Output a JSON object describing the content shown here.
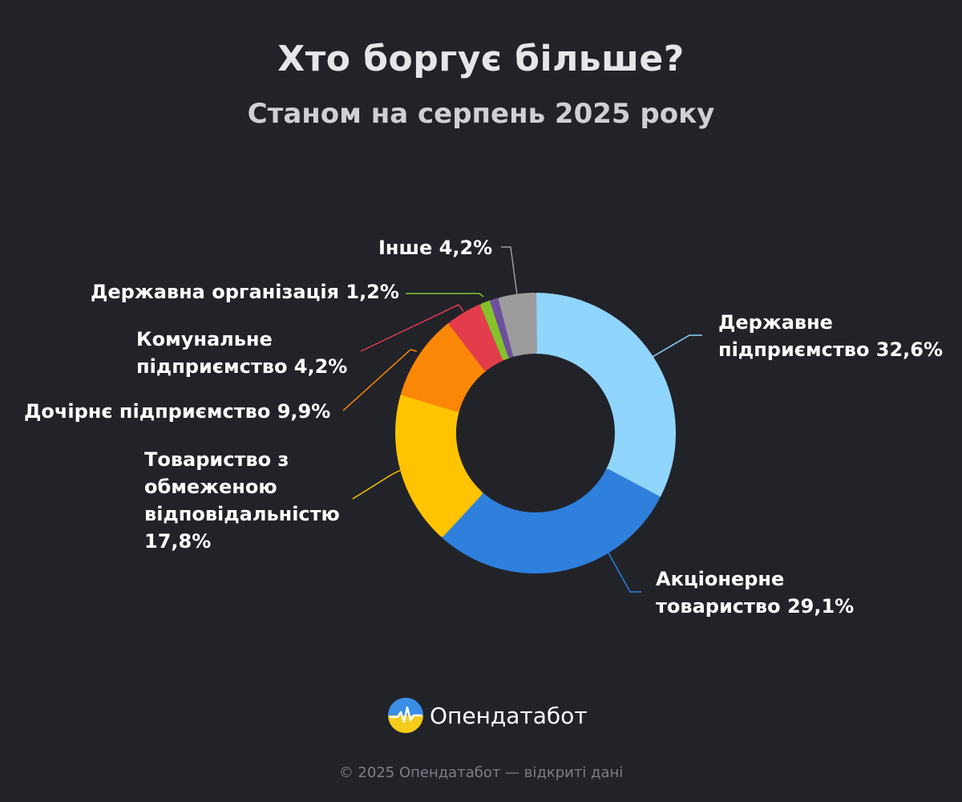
{
  "header": {
    "title": "Хто боргує більше?",
    "subtitle": "Станом на серпень 2025 року"
  },
  "chart_data": {
    "type": "pie",
    "variant": "donut",
    "title": "Хто боргує більше?",
    "subtitle": "Станом на серпень 2025 року",
    "slices": [
      {
        "name": "Державне підприємство",
        "label": "Державне\nпідприємство 32,6%",
        "value": 32.6,
        "color": "#90d5fb"
      },
      {
        "name": "Акціонерне товариство",
        "label": "Акціонерне\nтовариство 29,1%",
        "value": 29.1,
        "color": "#2e80dc"
      },
      {
        "name": "Товариство з обмеженою відповідальністю",
        "label": "Товариство з\nобмеженою\nвідповідальністю\n17,8%",
        "value": 17.8,
        "color": "#ffc300"
      },
      {
        "name": "Дочірнє підприємство",
        "label": "Дочірнє підприємство 9,9%",
        "value": 9.9,
        "color": "#fa8705"
      },
      {
        "name": "Комунальне підприємство",
        "label": "Комунальне\nпідприємство 4,2%",
        "value": 4.2,
        "color": "#e33c4b"
      },
      {
        "name": "Державна організація",
        "label": "Державна організація 1,2%",
        "value": 1.2,
        "color": "#84c32a"
      },
      {
        "name": "",
        "label": "",
        "value": 1.0,
        "color": "#6e4f9e"
      },
      {
        "name": "Інше",
        "label": "Інше 4,2%",
        "value": 4.2,
        "color": "#9c9c9c"
      }
    ],
    "legend": "none",
    "labels": "outside-with-leader-lines"
  },
  "brand": {
    "name": "Опендатабот",
    "icon": "opendatabot-logo-icon",
    "colors": {
      "top": "#3a8ee6",
      "bottom": "#f5cc1a"
    }
  },
  "footer": {
    "text": "© 2025 Опендатабот — відкриті дані"
  }
}
